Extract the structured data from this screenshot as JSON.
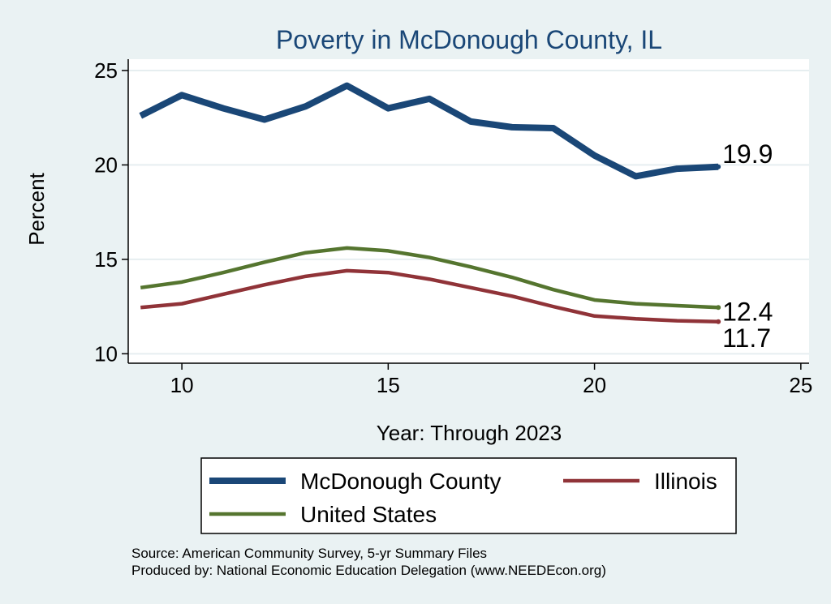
{
  "chart_data": {
    "type": "line",
    "title": "Poverty in McDonough County, IL",
    "xlabel": "Year: Through 2023",
    "ylabel": "Percent",
    "xlim": [
      8.7,
      25.2
    ],
    "ylim": [
      9.5,
      25.6
    ],
    "xticks": [
      10,
      15,
      20,
      25
    ],
    "yticks": [
      10,
      15,
      20,
      25
    ],
    "grid": true,
    "x": [
      9,
      10,
      11,
      12,
      13,
      14,
      15,
      16,
      17,
      18,
      19,
      20,
      21,
      22,
      23
    ],
    "series": [
      {
        "name": "McDonough County",
        "color": "#1a4777",
        "values": [
          22.6,
          23.7,
          23.0,
          22.4,
          23.1,
          24.2,
          23.0,
          23.5,
          22.3,
          22.0,
          21.95,
          20.5,
          19.4,
          19.8,
          19.9
        ],
        "end_label": "19.9"
      },
      {
        "name": "Illinois",
        "color": "#903338",
        "values": [
          12.45,
          12.65,
          13.15,
          13.65,
          14.1,
          14.4,
          14.3,
          13.95,
          13.5,
          13.05,
          12.5,
          12.0,
          11.85,
          11.75,
          11.7
        ],
        "end_label": "11.7"
      },
      {
        "name": "United States",
        "color": "#55752f",
        "values": [
          13.5,
          13.8,
          14.3,
          14.85,
          15.35,
          15.6,
          15.45,
          15.1,
          14.6,
          14.05,
          13.4,
          12.85,
          12.65,
          12.55,
          12.45
        ],
        "end_label": "12.4"
      }
    ],
    "legend": {
      "placement": "bottom",
      "entries": [
        "McDonough County",
        "Illinois",
        "United States"
      ]
    }
  },
  "notes": {
    "source": "Source: American Community Survey, 5-yr Summary Files",
    "produced": "Produced by: National Economic Education Delegation (www.NEEDEcon.org)"
  }
}
